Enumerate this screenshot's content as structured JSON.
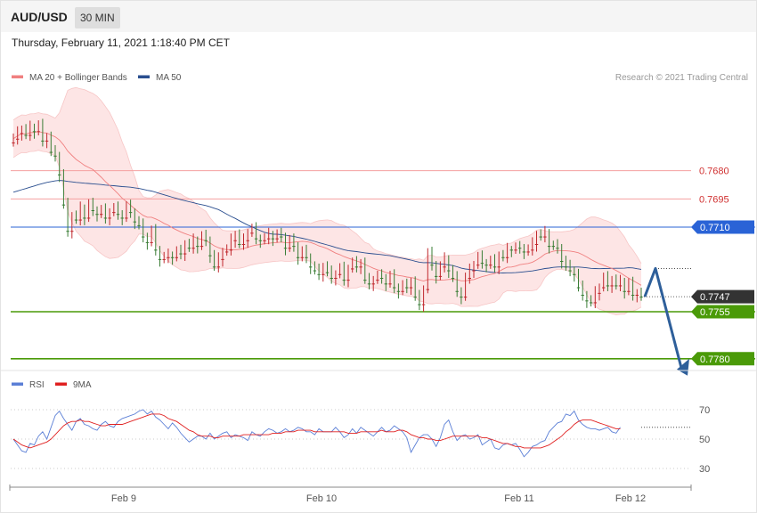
{
  "header": {
    "symbol": "AUD/USD",
    "interval": "30 MIN",
    "timestamp": "Thursday, February 11, 2021 1:18:40 PM CET"
  },
  "colors": {
    "bull": "#3a7d35",
    "bear": "#c0282d",
    "ma20": "#f08080",
    "ma50": "#2a4e8f",
    "band_fill": "#fde0e0",
    "green_level": "#4a9a08",
    "blue_level": "#2a63d6",
    "red_level": "#f4a0a0",
    "price_tag": "#333333",
    "arrow": "#2e5f9a",
    "rsi": "#5b7fd6",
    "rsi_ma": "#e02020"
  },
  "chart_data": [
    {
      "type": "candlestick",
      "title": "AUD/USD",
      "credit": "Research © 2021 Trading Central",
      "legend": [
        {
          "label": "MA 20 + Bollinger Bands",
          "color": "#f08080"
        },
        {
          "label": "MA 50",
          "color": "#2a4e8f"
        }
      ],
      "y_range": [
        0.7636,
        0.7784
      ],
      "x_ticks": [
        "Feb 9",
        "Feb 10",
        "Feb 11",
        "Feb 12"
      ],
      "current_price": "0.7747",
      "levels": [
        {
          "label": "0.7780",
          "value": 0.778,
          "kind": "resistance",
          "color": "#4a9a08"
        },
        {
          "label": "0.7755",
          "value": 0.7755,
          "kind": "resistance",
          "color": "#4a9a08"
        },
        {
          "label": "0.7710",
          "value": 0.771,
          "kind": "pivot",
          "color": "#2a63d6"
        },
        {
          "label": "0.7695",
          "value": 0.7695,
          "kind": "support",
          "color": "#d03030"
        },
        {
          "label": "0.7680",
          "value": 0.768,
          "kind": "support",
          "color": "#d03030"
        }
      ],
      "scenario_path": [
        0.7747,
        0.7732,
        0.778
      ],
      "close": [
        0.7663,
        0.766,
        0.7658,
        0.7661,
        0.7657,
        0.7659,
        0.7656,
        0.7664,
        0.7662,
        0.767,
        0.7672,
        0.7682,
        0.7698,
        0.7712,
        0.7704,
        0.7706,
        0.77,
        0.7705,
        0.7698,
        0.7701,
        0.7703,
        0.7701,
        0.7705,
        0.7702,
        0.77,
        0.7703,
        0.7705,
        0.7699,
        0.7702,
        0.7707,
        0.7709,
        0.7715,
        0.7718,
        0.7712,
        0.7722,
        0.7727,
        0.7726,
        0.7725,
        0.7726,
        0.7723,
        0.7724,
        0.7719,
        0.7721,
        0.7717,
        0.772,
        0.7715,
        0.7717,
        0.7725,
        0.7731,
        0.7727,
        0.7723,
        0.7722,
        0.7717,
        0.7714,
        0.7719,
        0.7717,
        0.7713,
        0.7711,
        0.7716,
        0.7717,
        0.7716,
        0.7714,
        0.7716,
        0.7714,
        0.7715,
        0.7721,
        0.7717,
        0.772,
        0.7726,
        0.7723,
        0.7726,
        0.7731,
        0.7733,
        0.7735,
        0.7731,
        0.7734,
        0.7737,
        0.7735,
        0.7732,
        0.7738,
        0.7732,
        0.7729,
        0.7731,
        0.7729,
        0.7738,
        0.774,
        0.7738,
        0.7736,
        0.7737,
        0.774,
        0.7736,
        0.7742,
        0.7744,
        0.7741,
        0.7742,
        0.7739,
        0.7747,
        0.7751,
        0.7743,
        0.7724,
        0.773,
        0.7736,
        0.7731,
        0.7727,
        0.7733,
        0.7737,
        0.7744,
        0.7747,
        0.7737,
        0.7733,
        0.773,
        0.7726,
        0.7729,
        0.773,
        0.7728,
        0.7731,
        0.7725,
        0.7726,
        0.7722,
        0.7722,
        0.7721,
        0.7721,
        0.7723,
        0.7722,
        0.7719,
        0.7714,
        0.7715,
        0.7713,
        0.772,
        0.772,
        0.7721,
        0.7728,
        0.7731,
        0.7733,
        0.7735,
        0.7742,
        0.7746,
        0.7749,
        0.775,
        0.7745,
        0.7742,
        0.7737,
        0.7741,
        0.7738,
        0.7741,
        0.7739,
        0.7744,
        0.774,
        0.7746,
        0.7745,
        0.7747
      ]
    },
    {
      "type": "line",
      "title": "",
      "legend": [
        {
          "label": "RSI",
          "color": "#5b7fd6"
        },
        {
          "label": "9MA",
          "color": "#e02020"
        }
      ],
      "y_range": [
        19,
        75
      ],
      "y_ticks": [
        30,
        50,
        70
      ],
      "y_tick_labels": [
        "30",
        "50",
        "70"
      ],
      "reference_lines": [
        30,
        50,
        70
      ],
      "series": [
        {
          "name": "RSI",
          "values": [
            50,
            46,
            42,
            41,
            47,
            46,
            52,
            55,
            50,
            58,
            66,
            69,
            64,
            60,
            56,
            62,
            64,
            60,
            59,
            57,
            56,
            60,
            62,
            59,
            58,
            62,
            64,
            65,
            66,
            67,
            69,
            70,
            67,
            69,
            65,
            63,
            60,
            57,
            61,
            58,
            54,
            51,
            48,
            50,
            52,
            52,
            50,
            54,
            50,
            52,
            54,
            55,
            51,
            53,
            52,
            51,
            49,
            55,
            53,
            52,
            55,
            57,
            56,
            54,
            55,
            57,
            55,
            56,
            58,
            57,
            55,
            55,
            53,
            57,
            55,
            55,
            55,
            58,
            55,
            51,
            53,
            57,
            54,
            58,
            56,
            54,
            52,
            55,
            58,
            55,
            56,
            59,
            57,
            55,
            51,
            41,
            46,
            51,
            53,
            53,
            50,
            45,
            51,
            60,
            63,
            55,
            49,
            52,
            53,
            50,
            51,
            53,
            46,
            48,
            50,
            44,
            43,
            46,
            47,
            46,
            47,
            43,
            38,
            41,
            45,
            46,
            48,
            49,
            55,
            58,
            61,
            62,
            67,
            66,
            69,
            63,
            60,
            58,
            57,
            57,
            56,
            57,
            58,
            55,
            54,
            58
          ]
        },
        {
          "name": "9MA",
          "values": [
            50,
            48,
            46,
            45,
            44,
            45,
            46,
            47,
            48,
            50,
            53,
            56,
            59,
            61,
            62,
            62,
            63,
            62,
            62,
            61,
            60,
            59,
            59,
            60,
            60,
            60,
            60,
            61,
            62,
            63,
            64,
            65,
            66,
            67,
            67,
            67,
            66,
            64,
            63,
            62,
            60,
            58,
            56,
            55,
            53,
            52,
            52,
            52,
            51,
            51,
            52,
            52,
            52,
            52,
            52,
            53,
            53,
            53,
            53,
            53,
            53,
            53,
            54,
            54,
            54,
            55,
            55,
            55,
            56,
            56,
            56,
            56,
            55,
            55,
            55,
            55,
            55,
            55,
            55,
            55,
            54,
            54,
            54,
            55,
            55,
            55,
            55,
            55,
            56,
            55,
            55,
            55,
            56,
            56,
            55,
            53,
            52,
            51,
            51,
            50,
            50,
            49,
            49,
            50,
            51,
            52,
            52,
            52,
            52,
            52,
            52,
            52,
            51,
            51,
            50,
            49,
            48,
            47,
            47,
            46,
            45,
            45,
            44,
            44,
            44,
            44,
            44,
            45,
            46,
            48,
            50,
            52,
            55,
            57,
            60,
            62,
            63,
            63,
            63,
            62,
            61,
            60,
            59,
            58,
            57,
            57
          ]
        }
      ]
    }
  ]
}
